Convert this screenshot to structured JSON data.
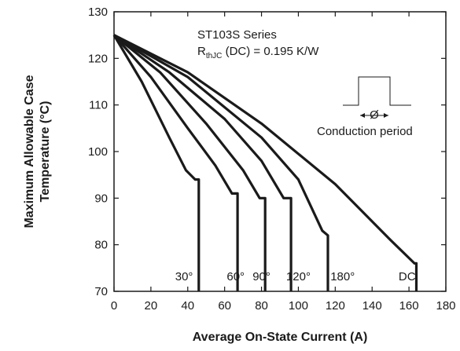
{
  "chart_data": {
    "type": "line",
    "xlabel": "Average On-State Current (A)",
    "ylabel_lines": [
      "Maximum Allowable Case",
      "Temperature (°C)"
    ],
    "xlim": [
      0,
      180
    ],
    "ylim": [
      70,
      130
    ],
    "xticks": [
      0,
      20,
      40,
      60,
      80,
      100,
      120,
      140,
      160,
      180
    ],
    "yticks": [
      70,
      80,
      90,
      100,
      110,
      120,
      130
    ],
    "grid": false,
    "annotation": {
      "series_name": "ST103S Series",
      "rth_prefix": "R",
      "rth_sub": "thJC",
      "rth_rest": " (DC) = 0.195 K/W",
      "inset_label": "Conduction period",
      "inset_symbol": "Ø"
    },
    "series": [
      {
        "name": "30°",
        "label_x": 38,
        "points": [
          [
            0,
            125
          ],
          [
            15,
            115
          ],
          [
            30,
            103
          ],
          [
            39,
            96
          ],
          [
            44,
            94
          ],
          [
            46,
            94
          ],
          [
            46,
            70
          ]
        ]
      },
      {
        "name": "60°",
        "label_x": 66,
        "points": [
          [
            0,
            125
          ],
          [
            20,
            116
          ],
          [
            40,
            105
          ],
          [
            55,
            97
          ],
          [
            64,
            91
          ],
          [
            67,
            91
          ],
          [
            67,
            70
          ]
        ]
      },
      {
        "name": "90°",
        "label_x": 80,
        "points": [
          [
            0,
            125
          ],
          [
            25,
            117
          ],
          [
            50,
            106
          ],
          [
            70,
            96
          ],
          [
            79,
            90
          ],
          [
            82,
            90
          ],
          [
            82,
            70
          ]
        ]
      },
      {
        "name": "120°",
        "label_x": 100,
        "points": [
          [
            0,
            125
          ],
          [
            30,
            117
          ],
          [
            60,
            107
          ],
          [
            80,
            98
          ],
          [
            92,
            90
          ],
          [
            96,
            90
          ],
          [
            96,
            70
          ]
        ]
      },
      {
        "name": "180°",
        "label_x": 124,
        "points": [
          [
            0,
            125
          ],
          [
            40,
            116
          ],
          [
            80,
            103
          ],
          [
            100,
            94
          ],
          [
            113,
            83
          ],
          [
            116,
            82
          ],
          [
            116,
            70
          ]
        ]
      },
      {
        "name": "DC",
        "label_x": 159,
        "points": [
          [
            0,
            125
          ],
          [
            40,
            117
          ],
          [
            80,
            106
          ],
          [
            120,
            93
          ],
          [
            150,
            81
          ],
          [
            163,
            76
          ],
          [
            164,
            76
          ],
          [
            164,
            70
          ]
        ]
      }
    ]
  }
}
